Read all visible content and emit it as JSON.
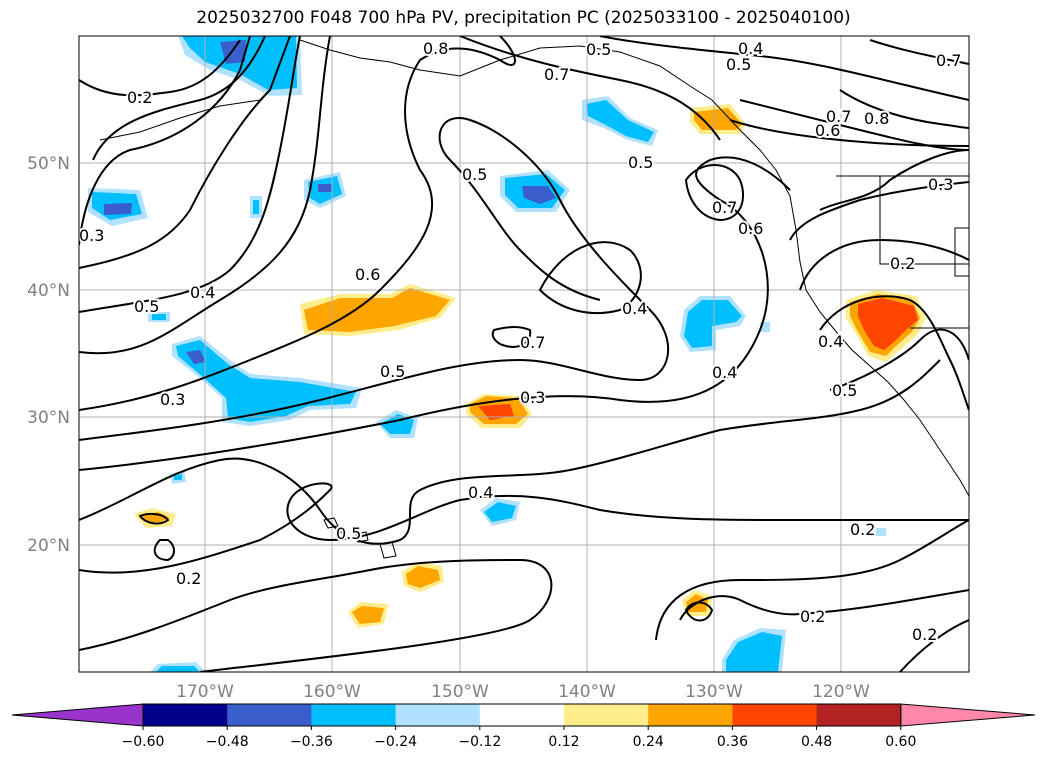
{
  "title": "2025032700 F048 700 hPa PV, precipitation PC (2025033100 - 2025040100)",
  "map": {
    "lon_labels": [
      "170°W",
      "160°W",
      "150°W",
      "140°W",
      "130°W",
      "120°W"
    ],
    "lat_labels": [
      "50°N",
      "40°N",
      "30°N",
      "20°N"
    ],
    "contour_labels": [
      {
        "text": "0.2"
      },
      {
        "text": "0.8"
      },
      {
        "text": "0.5"
      },
      {
        "text": "0.4"
      },
      {
        "text": "0.5"
      },
      {
        "text": "0.7"
      },
      {
        "text": "0.7"
      },
      {
        "text": "0.7"
      },
      {
        "text": "0.8"
      },
      {
        "text": "0.6"
      },
      {
        "text": "0.5"
      },
      {
        "text": "0.5"
      },
      {
        "text": "0.3"
      },
      {
        "text": "0.7"
      },
      {
        "text": "0.6"
      },
      {
        "text": "0.3"
      },
      {
        "text": "0.2"
      },
      {
        "text": "0.6"
      },
      {
        "text": "0.4"
      },
      {
        "text": "0.5"
      },
      {
        "text": "0.4"
      },
      {
        "text": "0.7"
      },
      {
        "text": "0.4"
      },
      {
        "text": "0.4"
      },
      {
        "text": "0.5"
      },
      {
        "text": "0.3"
      },
      {
        "text": "0.5"
      },
      {
        "text": "0.3"
      },
      {
        "text": "0.4"
      },
      {
        "text": "0.5"
      },
      {
        "text": "0.2"
      },
      {
        "text": "0.2"
      },
      {
        "text": "0.2"
      },
      {
        "text": "0.2"
      }
    ]
  },
  "colorbar": {
    "ticks": [
      "−0.60",
      "−0.48",
      "−0.36",
      "−0.24",
      "−0.12",
      "0.12",
      "0.24",
      "0.36",
      "0.48",
      "0.60"
    ],
    "colors": [
      "#9933cc",
      "#00008b",
      "#3a5fcd",
      "#00bfff",
      "#b0e2ff",
      "#ffffff",
      "#ffec8b",
      "#ffa500",
      "#ff4500",
      "#b22222",
      "#ff88aa"
    ]
  },
  "colors": {
    "light_blue": "#b0e2ff",
    "cyan": "#00bfff",
    "royal": "#3a5fcd",
    "purple": "#9933cc",
    "yellow": "#ffec8b",
    "orange": "#ffa500",
    "red": "#ff4500"
  }
}
